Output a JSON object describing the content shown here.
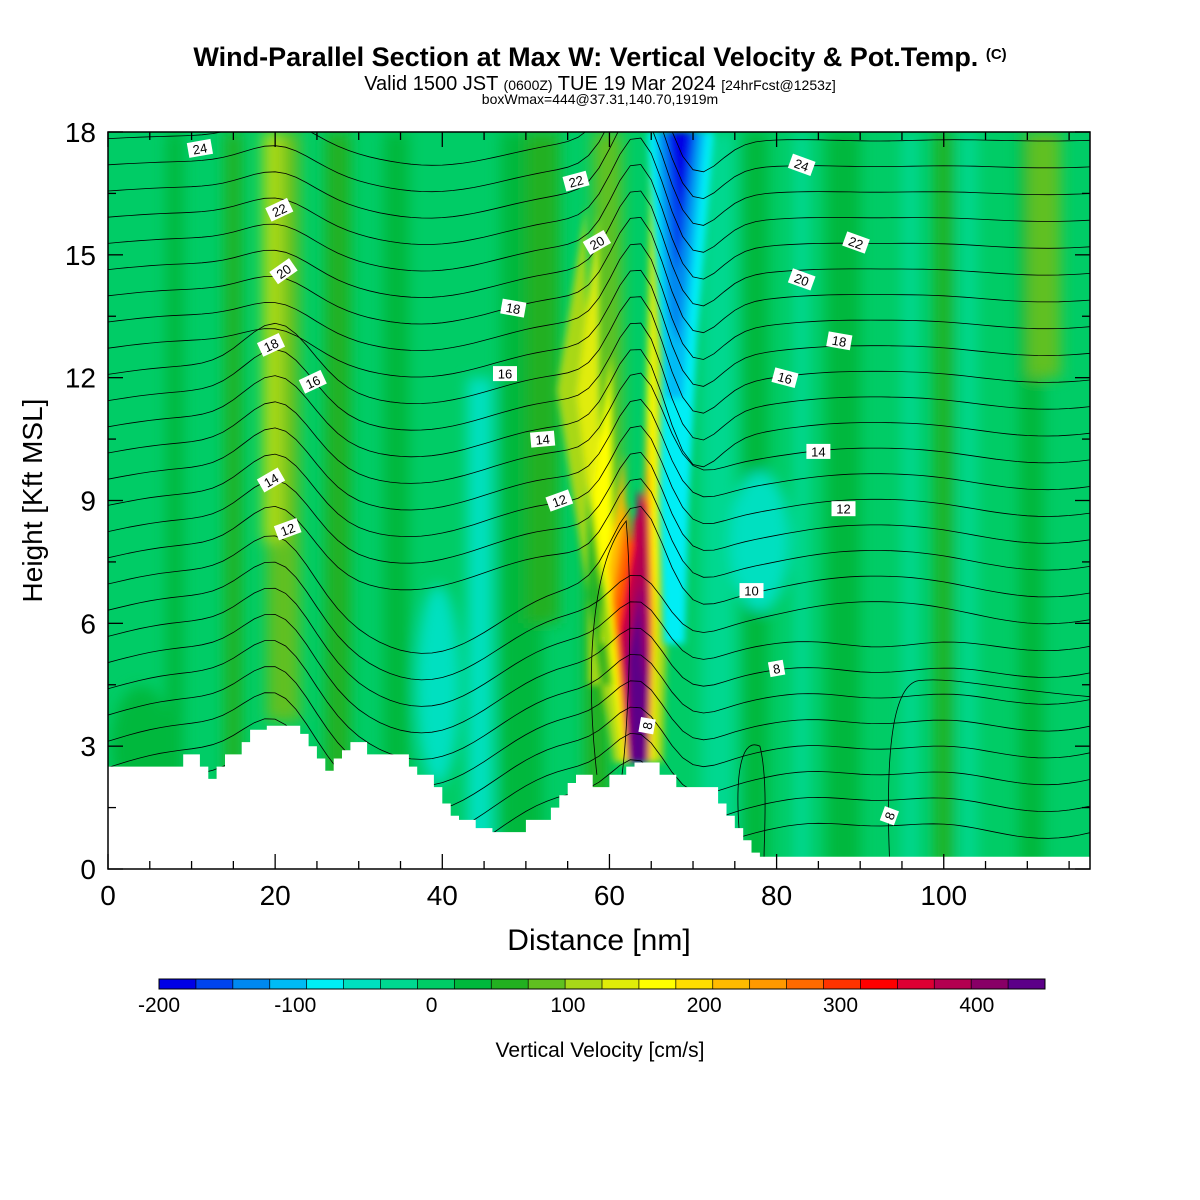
{
  "header": {
    "title": "Wind-Parallel Section at Max W: Vertical Velocity & Pot.Temp.",
    "copyright": "(C)",
    "valid_prefix": "Valid 1500 JST",
    "valid_utc": "(0600Z)",
    "valid_date": "TUE 19 Mar 2024",
    "forecast": "[24hrFcst@1253z]",
    "box_info": "boxWmax=444@37.31,140.70,1919m"
  },
  "chart_data": {
    "type": "heatmap",
    "xlabel": "Distance [nm]",
    "ylabel": "Height [Kft MSL]",
    "xlim": [
      0,
      117.5
    ],
    "ylim": [
      0,
      18
    ],
    "x_ticks": [
      "0",
      "20",
      "40",
      "60",
      "80",
      "100"
    ],
    "y_ticks": [
      "0",
      "3",
      "6",
      "9",
      "12",
      "15",
      "18"
    ],
    "colorbar": {
      "label": "Vertical Velocity [cm/s]",
      "range": [
        -200,
        450
      ],
      "step": 25,
      "tick_labels": [
        "-200",
        "-100",
        "0",
        "100",
        "200",
        "300",
        "400"
      ],
      "colors": [
        "#0000e6",
        "#0044ee",
        "#0088f0",
        "#00bbf5",
        "#00eef5",
        "#00e0c0",
        "#00d890",
        "#00cc66",
        "#00b83c",
        "#22b020",
        "#60c020",
        "#a8d818",
        "#e0ec08",
        "#ffff00",
        "#ffdd00",
        "#ffbb00",
        "#ff9900",
        "#ff6a00",
        "#ff3300",
        "#ff0000",
        "#dd0033",
        "#b30050",
        "#880066",
        "#5c0088"
      ]
    },
    "updraft": {
      "x": 63.5,
      "z_peak": 7.2,
      "w_max": 444
    },
    "downdraft": {
      "x": 68.5,
      "z_peak": 17.0,
      "w_min": -200
    },
    "terrain": [
      [
        0,
        2.5
      ],
      [
        9,
        2.5
      ],
      [
        9,
        2.8
      ],
      [
        11,
        2.8
      ],
      [
        11,
        2.5
      ],
      [
        12,
        2.5
      ],
      [
        12,
        2.2
      ],
      [
        13,
        2.2
      ],
      [
        13,
        2.5
      ],
      [
        14,
        2.5
      ],
      [
        14,
        2.8
      ],
      [
        16,
        2.8
      ],
      [
        16,
        3.1
      ],
      [
        17,
        3.1
      ],
      [
        17,
        3.4
      ],
      [
        19,
        3.4
      ],
      [
        19,
        3.5
      ],
      [
        23,
        3.5
      ],
      [
        23,
        3.3
      ],
      [
        24,
        3.3
      ],
      [
        24,
        3.0
      ],
      [
        25,
        3.0
      ],
      [
        25,
        2.7
      ],
      [
        26,
        2.7
      ],
      [
        26,
        2.4
      ],
      [
        27,
        2.4
      ],
      [
        27,
        2.7
      ],
      [
        28,
        2.7
      ],
      [
        28,
        2.9
      ],
      [
        29,
        2.9
      ],
      [
        29,
        3.1
      ],
      [
        31,
        3.1
      ],
      [
        31,
        2.8
      ],
      [
        36,
        2.8
      ],
      [
        36,
        2.5
      ],
      [
        37,
        2.5
      ],
      [
        37,
        2.3
      ],
      [
        39,
        2.3
      ],
      [
        39,
        2.0
      ],
      [
        40,
        2.0
      ],
      [
        40,
        1.6
      ],
      [
        41,
        1.6
      ],
      [
        41,
        1.3
      ],
      [
        42,
        1.3
      ],
      [
        42,
        1.2
      ],
      [
        44,
        1.2
      ],
      [
        44,
        1.0
      ],
      [
        46,
        1.0
      ],
      [
        46,
        0.9
      ],
      [
        50,
        0.9
      ],
      [
        50,
        1.2
      ],
      [
        53,
        1.2
      ],
      [
        53,
        1.5
      ],
      [
        54,
        1.5
      ],
      [
        54,
        1.8
      ],
      [
        55,
        1.8
      ],
      [
        55,
        2.1
      ],
      [
        56,
        2.1
      ],
      [
        56,
        2.3
      ],
      [
        58,
        2.3
      ],
      [
        58,
        2.0
      ],
      [
        60,
        2.0
      ],
      [
        60,
        2.3
      ],
      [
        62,
        2.3
      ],
      [
        62,
        2.5
      ],
      [
        63,
        2.5
      ],
      [
        63,
        2.6
      ],
      [
        66,
        2.6
      ],
      [
        66,
        2.3
      ],
      [
        68,
        2.3
      ],
      [
        68,
        2.0
      ],
      [
        73,
        2.0
      ],
      [
        73,
        1.6
      ],
      [
        74,
        1.6
      ],
      [
        74,
        1.3
      ],
      [
        75,
        1.3
      ],
      [
        75,
        1.0
      ],
      [
        76,
        1.0
      ],
      [
        76,
        0.7
      ],
      [
        77,
        0.7
      ],
      [
        77,
        0.4
      ],
      [
        78,
        0.4
      ],
      [
        78,
        0.3
      ],
      [
        117.5,
        0.3
      ]
    ],
    "theta_labels": [
      {
        "text": "24",
        "x": 11,
        "y": 17.6,
        "rot": -10
      },
      {
        "text": "22",
        "x": 20.5,
        "y": 16.1,
        "rot": -25
      },
      {
        "text": "20",
        "x": 21,
        "y": 14.6,
        "rot": -35
      },
      {
        "text": "18",
        "x": 19.5,
        "y": 12.8,
        "rot": -25
      },
      {
        "text": "16",
        "x": 24.5,
        "y": 11.9,
        "rot": -25
      },
      {
        "text": "14",
        "x": 19.5,
        "y": 9.5,
        "rot": -30
      },
      {
        "text": "12",
        "x": 21.5,
        "y": 8.3,
        "rot": -20
      },
      {
        "text": "22",
        "x": 56,
        "y": 16.8,
        "rot": -15
      },
      {
        "text": "20",
        "x": 58.5,
        "y": 15.3,
        "rot": -30
      },
      {
        "text": "18",
        "x": 48.5,
        "y": 13.7,
        "rot": 10
      },
      {
        "text": "16",
        "x": 47.5,
        "y": 12.1,
        "rot": 0
      },
      {
        "text": "14",
        "x": 52,
        "y": 10.5,
        "rot": -5
      },
      {
        "text": "12",
        "x": 54,
        "y": 9.0,
        "rot": -20
      },
      {
        "text": "8",
        "x": 64.5,
        "y": 3.5,
        "rot": -80
      },
      {
        "text": "24",
        "x": 83,
        "y": 17.2,
        "rot": 20
      },
      {
        "text": "22",
        "x": 89.5,
        "y": 15.3,
        "rot": 20
      },
      {
        "text": "20",
        "x": 83,
        "y": 14.4,
        "rot": 20
      },
      {
        "text": "18",
        "x": 87.5,
        "y": 12.9,
        "rot": 10
      },
      {
        "text": "16",
        "x": 81,
        "y": 12.0,
        "rot": 15
      },
      {
        "text": "14",
        "x": 85,
        "y": 10.2,
        "rot": 0
      },
      {
        "text": "12",
        "x": 88,
        "y": 8.8,
        "rot": 0
      },
      {
        "text": "10",
        "x": 77,
        "y": 6.8,
        "rot": 0
      },
      {
        "text": "8",
        "x": 80,
        "y": 4.9,
        "rot": -10
      },
      {
        "text": "8",
        "x": 93.5,
        "y": 1.3,
        "rot": -70
      }
    ]
  }
}
